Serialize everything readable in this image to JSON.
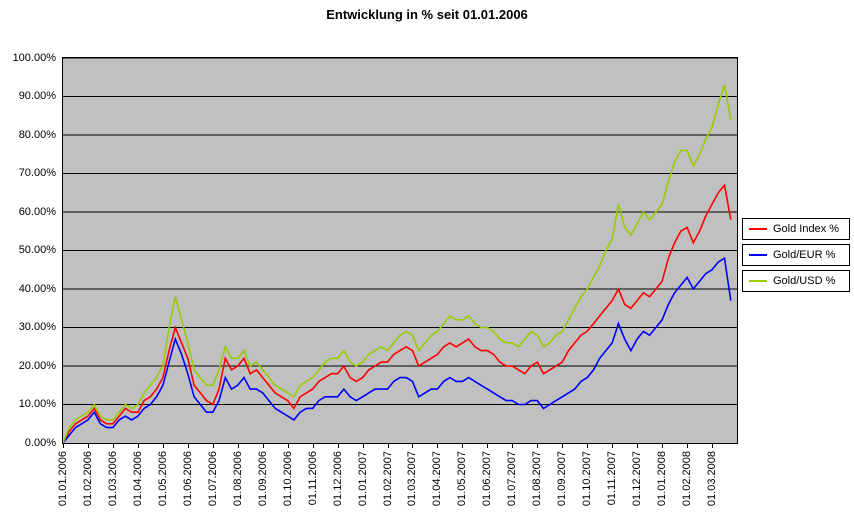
{
  "chart_data": {
    "type": "line",
    "title": "Entwicklung in % seit 01.01.2006",
    "plot_background": "#c0c0c0",
    "gridline_color": "#000000",
    "grid": "horizontal",
    "legend_position": "right",
    "ylim": [
      0,
      100
    ],
    "y_ticks": [
      "0.00%",
      "10.00%",
      "20.00%",
      "30.00%",
      "40.00%",
      "50.00%",
      "60.00%",
      "70.00%",
      "80.00%",
      "90.00%",
      "100.00%"
    ],
    "x_tick_labels": [
      "01.01.2006",
      "01.02.2006",
      "01.03.2006",
      "01.04.2006",
      "01.05.2006",
      "01.06.2006",
      "01.07.2006",
      "01.08.2006",
      "01.09.2006",
      "01.10.2006",
      "01.11.2006",
      "01.12.2006",
      "01.01.2007",
      "01.02.2007",
      "01.03.2007",
      "01.04.2007",
      "01.05.2007",
      "01.06.2007",
      "01.07.2007",
      "01.08.2007",
      "01.09.2007",
      "01.10.2007",
      "01.11.2007",
      "01.12.2007",
      "01.01.2008",
      "01.02.2008",
      "01.03.2008"
    ],
    "points_per_tick": 4,
    "x_count": 108,
    "series": [
      {
        "name": "Gold Index %",
        "color": "#ff0000",
        "values": [
          0,
          3,
          5,
          6,
          7,
          9,
          6,
          5,
          5,
          7,
          9,
          8,
          8,
          11,
          12,
          14,
          17,
          24,
          30,
          26,
          22,
          15,
          13,
          11,
          10,
          14,
          22,
          19,
          20,
          22,
          18,
          19,
          17,
          15,
          13,
          12,
          11,
          9,
          12,
          13,
          14,
          16,
          17,
          18,
          18,
          20,
          17,
          16,
          17,
          19,
          20,
          21,
          21,
          23,
          24,
          25,
          24,
          20,
          21,
          22,
          23,
          25,
          26,
          25,
          26,
          27,
          25,
          24,
          24,
          23,
          21,
          20,
          20,
          19,
          18,
          20,
          21,
          18,
          19,
          20,
          21,
          24,
          26,
          28,
          29,
          31,
          33,
          35,
          37,
          40,
          36,
          35,
          37,
          39,
          38,
          40,
          42,
          48,
          52,
          55,
          56,
          52,
          55,
          59,
          62,
          65,
          67,
          58
        ]
      },
      {
        "name": "Gold/EUR %",
        "color": "#0000ff",
        "values": [
          0,
          2,
          4,
          5,
          6,
          8,
          5,
          4,
          4,
          6,
          7,
          6,
          7,
          9,
          10,
          12,
          15,
          21,
          27,
          23,
          18,
          12,
          10,
          8,
          8,
          11,
          17,
          14,
          15,
          17,
          14,
          14,
          13,
          11,
          9,
          8,
          7,
          6,
          8,
          9,
          9,
          11,
          12,
          12,
          12,
          14,
          12,
          11,
          12,
          13,
          14,
          14,
          14,
          16,
          17,
          17,
          16,
          12,
          13,
          14,
          14,
          16,
          17,
          16,
          16,
          17,
          16,
          15,
          14,
          13,
          12,
          11,
          11,
          10,
          10,
          11,
          11,
          9,
          10,
          11,
          12,
          13,
          14,
          16,
          17,
          19,
          22,
          24,
          26,
          31,
          27,
          24,
          27,
          29,
          28,
          30,
          32,
          36,
          39,
          41,
          43,
          40,
          42,
          44,
          45,
          47,
          48,
          37
        ]
      },
      {
        "name": "Gold/USD %",
        "color": "#99cc00",
        "values": [
          0,
          4,
          6,
          7,
          8,
          10,
          7,
          6,
          6,
          8,
          10,
          9,
          10,
          13,
          15,
          17,
          20,
          30,
          38,
          32,
          26,
          19,
          17,
          15,
          15,
          19,
          25,
          22,
          22,
          24,
          20,
          21,
          19,
          17,
          15,
          14,
          13,
          12,
          15,
          16,
          17,
          19,
          21,
          22,
          22,
          24,
          21,
          20,
          21,
          23,
          24,
          25,
          24,
          26,
          28,
          29,
          28,
          24,
          26,
          28,
          29,
          31,
          33,
          32,
          32,
          33,
          31,
          30,
          30,
          29,
          27,
          26,
          26,
          25,
          27,
          29,
          28,
          25,
          26,
          28,
          29,
          32,
          35,
          38,
          40,
          43,
          46,
          50,
          53,
          62,
          56,
          54,
          57,
          60,
          58,
          60,
          62,
          68,
          73,
          76,
          76,
          72,
          75,
          79,
          82,
          88,
          93,
          84
        ]
      }
    ]
  }
}
